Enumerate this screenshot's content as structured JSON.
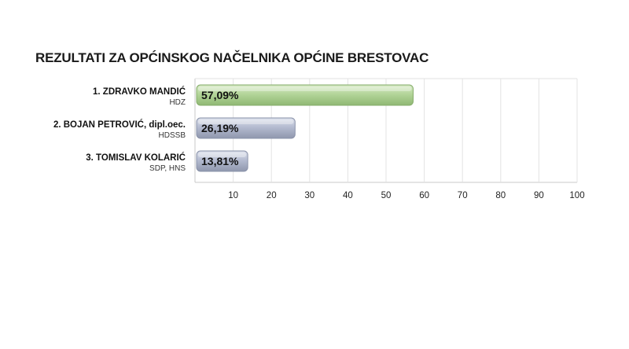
{
  "chart_data": {
    "type": "bar",
    "orientation": "horizontal",
    "title": "REZULTATI ZA OPĆINSKOG NAČELNIKA OPĆINE BRESTOVAC",
    "categories": [
      {
        "name": "1. ZDRAVKO MANDIĆ",
        "party": "HDZ"
      },
      {
        "name": "2. BOJAN PETROVIĆ, dipl.oec.",
        "party": "HDSSB"
      },
      {
        "name": "3. TOMISLAV KOLARIĆ",
        "party": "SDP, HNS"
      }
    ],
    "values": [
      57.09,
      26.19,
      13.81
    ],
    "value_labels": [
      "57,09%",
      "26,19%",
      "13,81%"
    ],
    "xlim": [
      0,
      100
    ],
    "xticks": [
      10,
      20,
      30,
      40,
      50,
      60,
      70,
      80,
      90,
      100
    ],
    "grid": true,
    "colors": [
      "#a9cf8e",
      "#aab2c8",
      "#aab2c8"
    ]
  }
}
